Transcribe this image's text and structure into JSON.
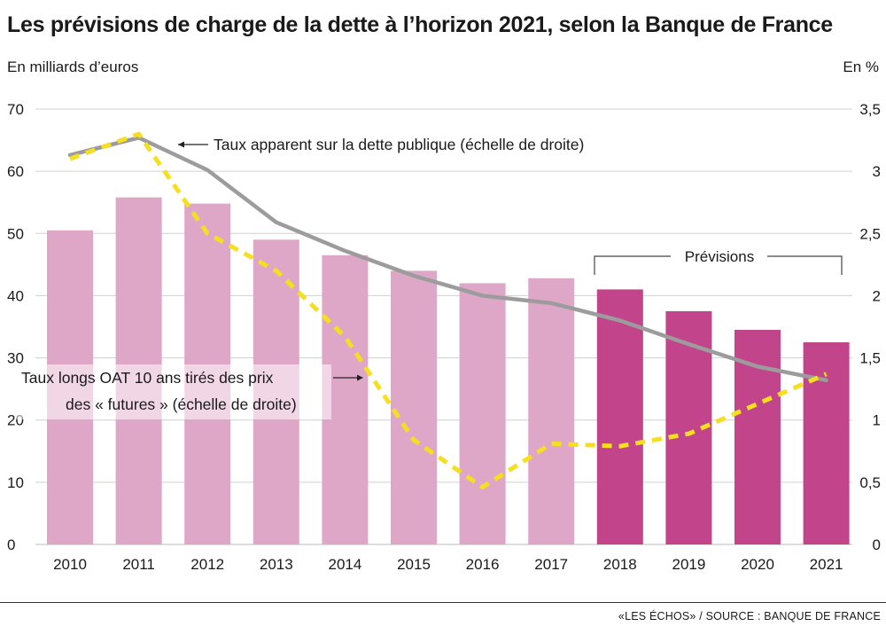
{
  "title": "Les prévisions de charge de la dette à l’horizon 2021, selon la Banque de France",
  "source": "«LES ÉCHOS» / SOURCE : BANQUE DE FRANCE",
  "chart_data": {
    "type": "bar",
    "categories": [
      "2010",
      "2011",
      "2012",
      "2013",
      "2014",
      "2015",
      "2016",
      "2017",
      "2018",
      "2019",
      "2020",
      "2021"
    ],
    "left_axis": {
      "label": "En milliards d’euros",
      "range": [
        0,
        70
      ],
      "ticks": [
        "0",
        "10",
        "20",
        "30",
        "40",
        "50",
        "60",
        "70"
      ]
    },
    "right_axis": {
      "label": "En %",
      "range": [
        0,
        3.5
      ],
      "ticks": [
        "0",
        "0,5",
        "1",
        "1,5",
        "2",
        "2,5",
        "3",
        "3,5"
      ]
    },
    "bars": {
      "values": [
        50.5,
        55.8,
        54.8,
        49,
        46.5,
        44,
        42,
        42.8,
        41,
        37.5,
        34.5,
        32.5
      ],
      "forecast_from_index": 8
    },
    "series": [
      {
        "name": "Taux apparent sur la dette publique (échelle de droite)",
        "axis": "right",
        "style": "solid",
        "values": [
          3.13,
          3.27,
          3.01,
          2.59,
          2.36,
          2.16,
          2.0,
          1.94,
          1.8,
          1.61,
          1.43,
          1.32
        ]
      },
      {
        "name": "Taux longs OAT 10 ans tirés des prix des « futures » (échelle de droite)",
        "axis": "right",
        "style": "dashed",
        "values": [
          3.1,
          3.3,
          2.5,
          2.2,
          1.67,
          0.84,
          0.46,
          0.81,
          0.79,
          0.89,
          1.13,
          1.37
        ]
      }
    ],
    "annotation_forecast": "Prévisions",
    "label_rate_apparent": "Taux apparent sur la dette publique (échelle de droite)",
    "label_oat_line1": "Taux longs OAT 10 ans tirés des prix",
    "label_oat_line2": "des « futures » (échelle de droite)",
    "grid": "horizontal",
    "colors": {
      "bar_past": "#dfa7c7",
      "bar_forecast": "#c2448a",
      "rate_apparent": "#9c9c9c",
      "rate_oat": "#f5df1f",
      "grid": "#d0d0d0"
    }
  }
}
